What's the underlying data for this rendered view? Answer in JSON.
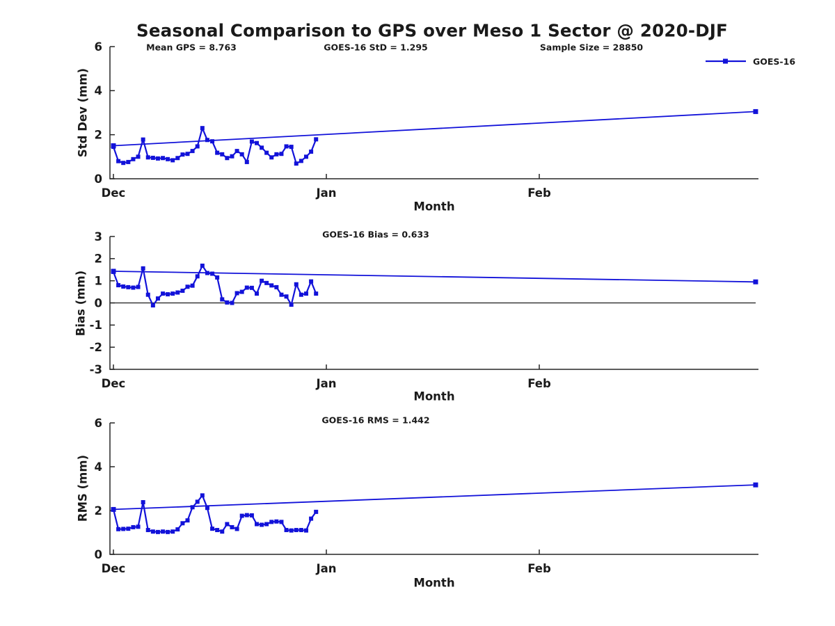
{
  "title": "Seasonal Comparison to GPS over Meso 1 Sector @ 2020-DJF",
  "legend": {
    "label": "GOES-16",
    "marker": "square"
  },
  "colors": {
    "series": "#1212d9",
    "axis": "#262626",
    "zero_line": "#1a1a1a",
    "text": "#1a1a1a",
    "background": "#ffffff"
  },
  "x_axis": {
    "unit": "days_from_dec1",
    "range": [
      0,
      94.5
    ]
  },
  "chart_data": [
    {
      "type": "line",
      "name": "std_dev_panel",
      "annotations": [
        "Mean GPS = 8.763",
        "GOES-16 StD = 1.295",
        "Sample Size = 28850"
      ],
      "ylabel": "Std Dev (mm)",
      "xlabel": "Month",
      "ylim": [
        0,
        6
      ],
      "yticks": [
        0,
        2,
        4,
        6
      ],
      "xticks": [
        {
          "label": "Dec",
          "day": 0
        },
        {
          "label": "Jan",
          "day": 31
        },
        {
          "label": "Feb",
          "day": 62
        }
      ],
      "series": [
        {
          "name": "GOES-16",
          "markers": "all",
          "line_width": 2.2,
          "x": [
            0,
            0.72,
            1.44,
            2.16,
            2.88,
            3.6,
            4.32,
            5.04,
            5.76,
            6.48,
            7.2,
            7.91,
            8.63,
            9.35,
            10.07,
            10.79,
            11.51,
            12.23,
            12.95,
            13.67,
            14.39,
            15.11,
            15.83,
            16.55,
            17.27,
            17.99,
            18.71,
            19.43,
            20.15,
            20.87,
            21.59,
            22.3,
            23.02,
            23.74,
            24.46,
            25.18,
            25.9,
            26.62,
            27.34,
            28.06,
            28.78,
            29.5
          ],
          "y": [
            1.45,
            0.8,
            0.72,
            0.76,
            0.89,
            1.0,
            1.78,
            0.97,
            0.95,
            0.92,
            0.94,
            0.89,
            0.84,
            0.94,
            1.1,
            1.13,
            1.26,
            1.47,
            2.3,
            1.76,
            1.7,
            1.18,
            1.11,
            0.94,
            1.02,
            1.26,
            1.11,
            0.76,
            1.69,
            1.62,
            1.41,
            1.18,
            0.97,
            1.11,
            1.13,
            1.47,
            1.45,
            0.69,
            0.81,
            1.0,
            1.23,
            1.79
          ]
        },
        {
          "name": "GOES-16-trend",
          "markers": "ends",
          "line_width": 1.8,
          "x": [
            0,
            93.5
          ],
          "y": [
            1.5,
            3.05
          ]
        }
      ]
    },
    {
      "type": "line",
      "name": "bias_panel",
      "annotations": [
        "GOES-16 Bias = 0.633"
      ],
      "ylabel": "Bias (mm)",
      "xlabel": "Month",
      "ylim": [
        -3,
        3
      ],
      "yticks": [
        3,
        2,
        1,
        0,
        -1,
        -2,
        -3
      ],
      "zero_line": true,
      "xticks": [
        {
          "label": "Dec",
          "day": 0
        },
        {
          "label": "Jan",
          "day": 31
        },
        {
          "label": "Feb",
          "day": 62
        }
      ],
      "series": [
        {
          "name": "GOES-16",
          "markers": "all",
          "line_width": 2.2,
          "x": [
            0,
            0.72,
            1.44,
            2.16,
            2.88,
            3.6,
            4.32,
            5.04,
            5.76,
            6.48,
            7.2,
            7.91,
            8.63,
            9.35,
            10.07,
            10.79,
            11.51,
            12.23,
            12.95,
            13.67,
            14.39,
            15.11,
            15.83,
            16.55,
            17.27,
            17.99,
            18.71,
            19.43,
            20.15,
            20.87,
            21.59,
            22.3,
            23.02,
            23.74,
            24.46,
            25.18,
            25.9,
            26.62,
            27.34,
            28.06,
            28.78,
            29.5
          ],
          "y": [
            1.4,
            0.8,
            0.74,
            0.71,
            0.69,
            0.72,
            1.56,
            0.37,
            -0.11,
            0.2,
            0.42,
            0.39,
            0.42,
            0.47,
            0.55,
            0.73,
            0.78,
            1.2,
            1.68,
            1.35,
            1.32,
            1.15,
            0.16,
            0.02,
            0.0,
            0.44,
            0.5,
            0.69,
            0.68,
            0.42,
            1.0,
            0.9,
            0.79,
            0.71,
            0.37,
            0.29,
            -0.08,
            0.84,
            0.37,
            0.42,
            0.97,
            0.42
          ]
        },
        {
          "name": "GOES-16-trend",
          "markers": "ends",
          "line_width": 1.8,
          "x": [
            0,
            93.5
          ],
          "y": [
            1.43,
            0.95
          ]
        }
      ]
    },
    {
      "type": "line",
      "name": "rms_panel",
      "annotations": [
        "GOES-16 RMS = 1.442"
      ],
      "ylabel": "RMS (mm)",
      "xlabel": "Month",
      "ylim": [
        0,
        6
      ],
      "yticks": [
        0,
        2,
        4,
        6
      ],
      "xticks": [
        {
          "label": "Dec",
          "day": 0
        },
        {
          "label": "Jan",
          "day": 31
        },
        {
          "label": "Feb",
          "day": 62
        }
      ],
      "series": [
        {
          "name": "GOES-16",
          "markers": "all",
          "line_width": 2.2,
          "x": [
            0,
            0.72,
            1.44,
            2.16,
            2.88,
            3.6,
            4.32,
            5.04,
            5.76,
            6.48,
            7.2,
            7.91,
            8.63,
            9.35,
            10.07,
            10.79,
            11.51,
            12.23,
            12.95,
            13.67,
            14.39,
            15.11,
            15.83,
            16.55,
            17.27,
            17.99,
            18.71,
            19.43,
            20.15,
            20.87,
            21.59,
            22.3,
            23.02,
            23.74,
            24.46,
            25.18,
            25.9,
            26.62,
            27.34,
            28.06,
            28.78,
            29.5
          ],
          "y": [
            2.05,
            1.15,
            1.16,
            1.17,
            1.24,
            1.26,
            2.38,
            1.11,
            1.04,
            1.02,
            1.04,
            1.02,
            1.04,
            1.14,
            1.42,
            1.55,
            2.15,
            2.4,
            2.69,
            2.12,
            1.17,
            1.11,
            1.04,
            1.38,
            1.24,
            1.16,
            1.76,
            1.79,
            1.78,
            1.38,
            1.35,
            1.38,
            1.48,
            1.5,
            1.48,
            1.11,
            1.09,
            1.11,
            1.11,
            1.09,
            1.63,
            1.94
          ]
        },
        {
          "name": "GOES-16-trend",
          "markers": "ends",
          "line_width": 1.8,
          "x": [
            0,
            93.5
          ],
          "y": [
            2.05,
            3.17
          ]
        }
      ]
    }
  ]
}
